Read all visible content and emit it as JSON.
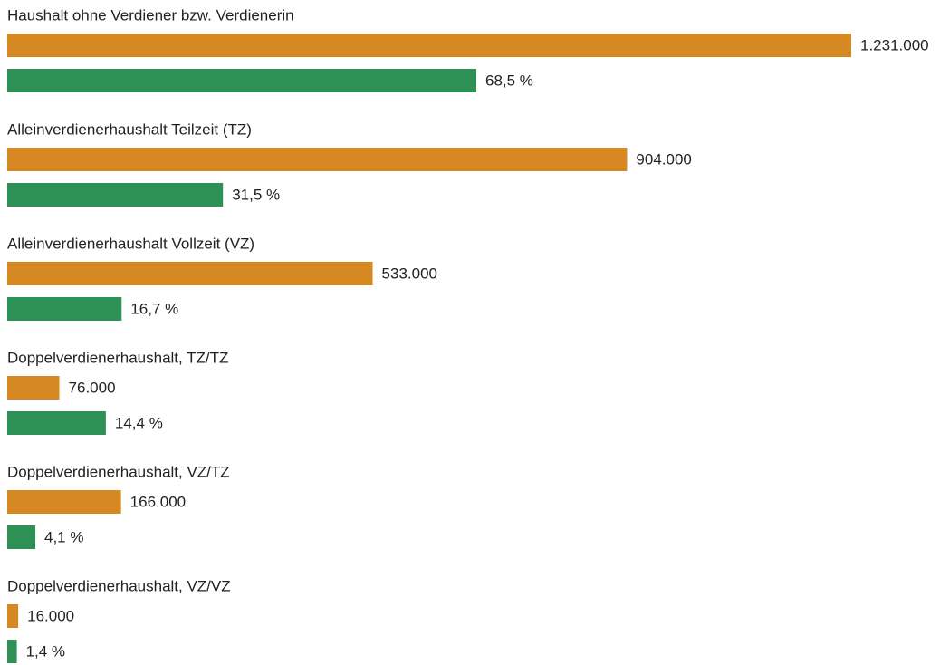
{
  "chart_data": {
    "type": "bar",
    "categories": [
      "Haushalt ohne Verdiener bzw. Verdienerin",
      "Alleinverdienerhaushalt Teilzeit (TZ)",
      "Alleinverdienerhaushalt Vollzeit (VZ)",
      "Doppelverdienerhaushalt, TZ/TZ",
      "Doppelverdienerhaushalt, VZ/TZ",
      "Doppelverdienerhaushalt, VZ/VZ"
    ],
    "series": [
      {
        "color": "#d68823",
        "values": [
          1231000,
          904000,
          533000,
          76000,
          166000,
          16000
        ],
        "value_labels": [
          "1.231.000",
          "904.000",
          "533.000",
          "76.000",
          "166.000",
          "16.000"
        ]
      },
      {
        "color": "#2d9155",
        "values": [
          68.5,
          31.5,
          16.7,
          14.4,
          4.1,
          1.4
        ],
        "value_labels": [
          "68,5 %",
          "31,5 %",
          "16,7 %",
          "14,4 %",
          "4,1 %",
          "1,4 %"
        ]
      }
    ]
  }
}
